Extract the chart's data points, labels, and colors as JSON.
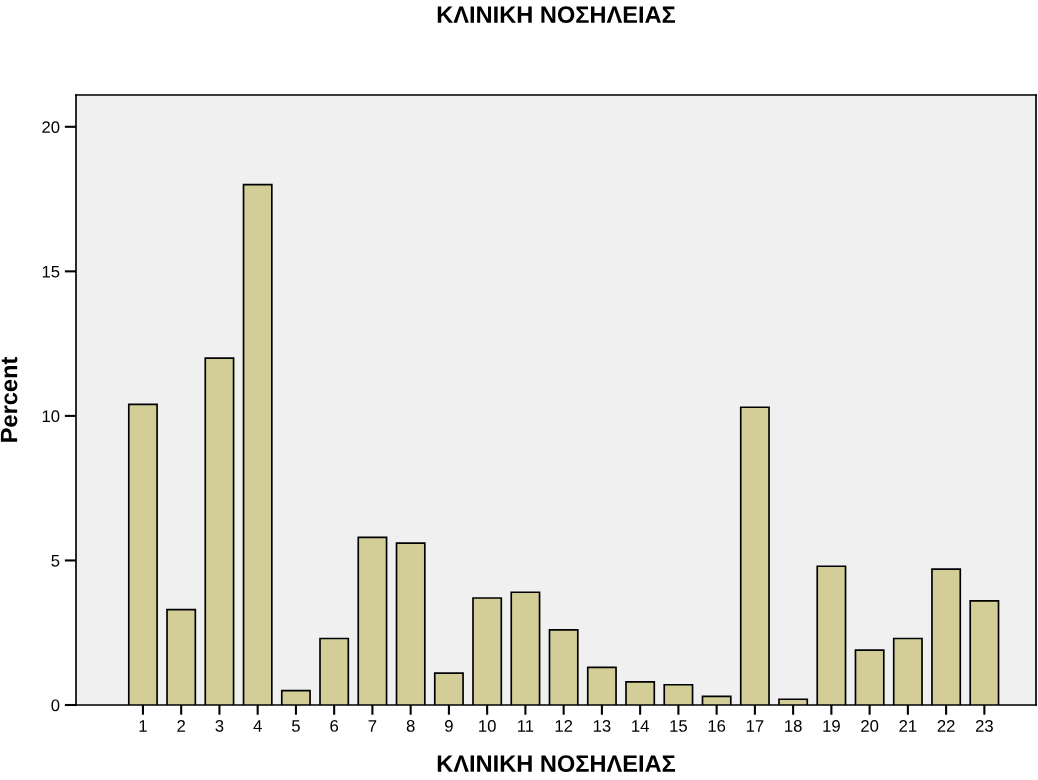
{
  "chart_data": {
    "type": "bar",
    "title": "ΚΛΙΝΙΚΗ ΝΟΣΗΛΕΙΑΣ",
    "xlabel": "ΚΛΙΝΙΚΗ ΝΟΣΗΛΕΙΑΣ",
    "ylabel": "Percent",
    "categories": [
      "1",
      "2",
      "3",
      "4",
      "5",
      "6",
      "7",
      "8",
      "9",
      "10",
      "11",
      "12",
      "13",
      "14",
      "15",
      "16",
      "17",
      "18",
      "19",
      "20",
      "21",
      "22",
      "23"
    ],
    "values": [
      10.4,
      3.3,
      12.0,
      18.0,
      0.5,
      2.3,
      5.8,
      5.6,
      1.1,
      3.7,
      3.9,
      2.6,
      1.3,
      0.8,
      0.7,
      0.3,
      10.3,
      0.2,
      4.8,
      1.9,
      2.3,
      4.7,
      3.6
    ],
    "color": "#d3ce97",
    "ylim": [
      0,
      21.1
    ],
    "yticks": [
      0,
      5,
      10,
      15,
      20
    ],
    "grid": false,
    "legend": false
  }
}
